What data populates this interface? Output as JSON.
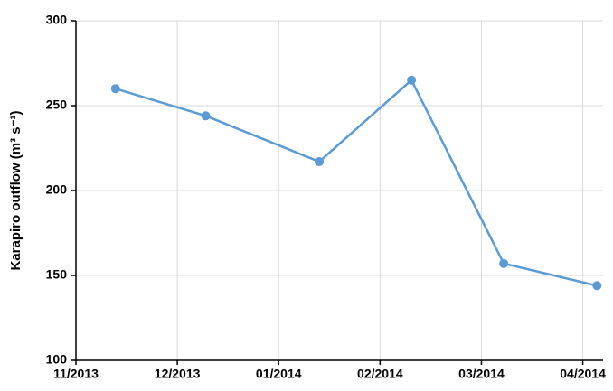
{
  "chart_data": {
    "type": "line",
    "y_label": "Karapiro outflow (m³ s⁻¹)",
    "x": [
      0.39,
      1.28,
      2.4,
      3.31,
      4.22,
      5.14
    ],
    "series": [
      {
        "name": "Karapiro outflow",
        "color": "#5b9bd5",
        "values": [
          260,
          244,
          217,
          265,
          157,
          144
        ]
      }
    ],
    "xlim": [
      0,
      5.2
    ],
    "xticks": [
      {
        "value": 0,
        "label": "11/2013"
      },
      {
        "value": 1,
        "label": "12/2013"
      },
      {
        "value": 2,
        "label": "01/2014"
      },
      {
        "value": 3,
        "label": "02/2014"
      },
      {
        "value": 4,
        "label": "03/2014"
      },
      {
        "value": 5,
        "label": "04/2014"
      }
    ],
    "ylim": [
      100,
      300
    ],
    "yticks": [
      100,
      150,
      200,
      250,
      300
    ],
    "grid": true
  }
}
